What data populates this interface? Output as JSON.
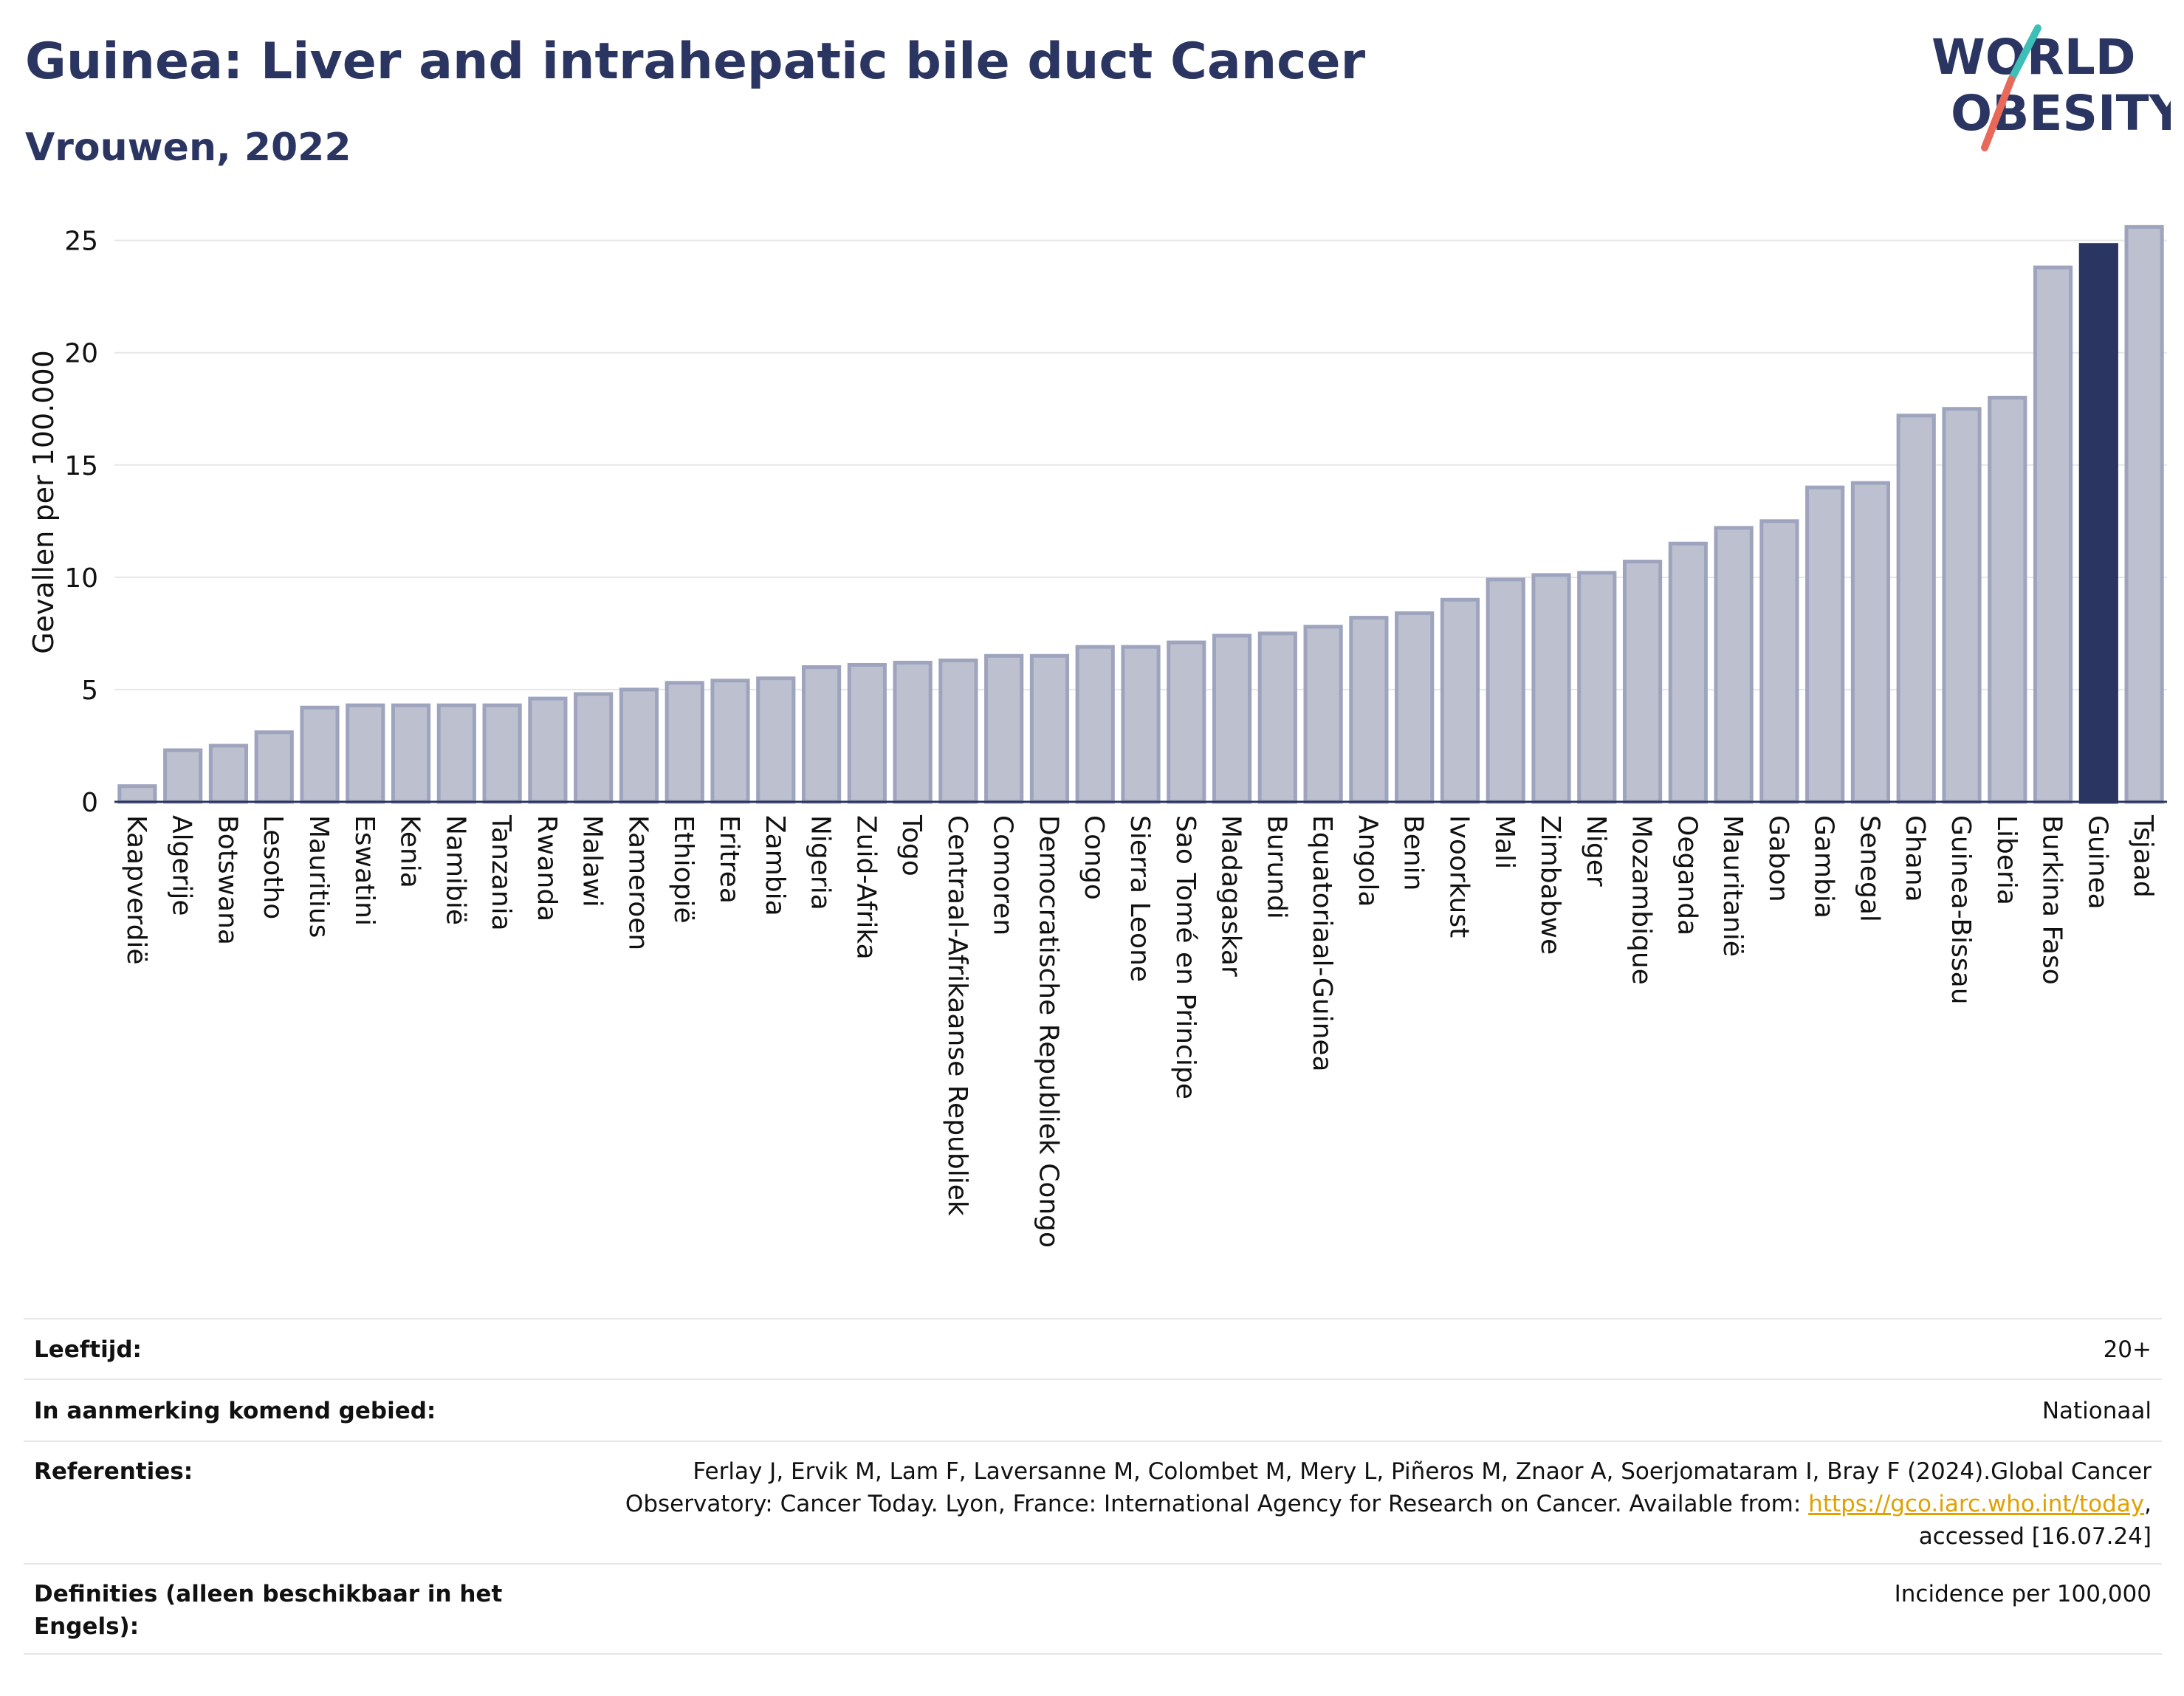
{
  "title": "Guinea: Liver and intrahepatic bile duct Cancer",
  "subtitle": "Vrouwen, 2022",
  "logo": {
    "line1": "WORLD",
    "line2": "OBESITY",
    "accent_teal": "#3dbfb8",
    "accent_red": "#e8695a",
    "text_color": "#2b3561"
  },
  "colors": {
    "highlight": "#2b3561",
    "bar_fill": "#bcc0cf",
    "bar_stroke": "#9ea4bd",
    "grid": "#e6e6e6",
    "link": "#e0a100"
  },
  "chart_data": {
    "type": "bar",
    "title": "Guinea: Liver and intrahepatic bile duct Cancer",
    "subtitle": "Vrouwen, 2022",
    "xlabel": "",
    "ylabel": "Gevallen per 100.000",
    "ylim": [
      0,
      26.5
    ],
    "yticks": [
      0,
      5,
      10,
      15,
      20,
      25
    ],
    "grid": true,
    "highlight": "Guinea",
    "categories": [
      "Kaapverdië",
      "Algerije",
      "Botswana",
      "Lesotho",
      "Mauritius",
      "Eswatini",
      "Kenia",
      "Namibië",
      "Tanzania",
      "Rwanda",
      "Malawi",
      "Kameroen",
      "Ethiopië",
      "Eritrea",
      "Zambia",
      "Nigeria",
      "Zuid-Afrika",
      "Togo",
      "Centraal-Afrikaanse Republiek",
      "Comoren",
      "Democratische Republiek Congo",
      "Congo",
      "Sierra Leone",
      "Sao Tomé en Principe",
      "Madagaskar",
      "Burundi",
      "Equatoriaal-Guinea",
      "Angola",
      "Benin",
      "Ivoorkust",
      "Mali",
      "Zimbabwe",
      "Niger",
      "Mozambique",
      "Oeganda",
      "Mauritanië",
      "Gabon",
      "Gambia",
      "Senegal",
      "Ghana",
      "Guinea-Bissau",
      "Liberia",
      "Burkina Faso",
      "Guinea",
      "Tsjaad"
    ],
    "values": [
      0.7,
      2.3,
      2.5,
      3.1,
      4.2,
      4.3,
      4.3,
      4.3,
      4.3,
      4.6,
      4.8,
      5.0,
      5.3,
      5.4,
      5.5,
      6.0,
      6.1,
      6.2,
      6.3,
      6.5,
      6.5,
      6.9,
      6.9,
      7.1,
      7.4,
      7.5,
      7.8,
      8.2,
      8.4,
      9.0,
      9.9,
      10.1,
      10.2,
      10.7,
      11.5,
      12.2,
      12.5,
      14.0,
      14.2,
      17.2,
      17.5,
      18.0,
      23.8,
      24.8,
      25.6
    ]
  },
  "meta": [
    {
      "label": "Leeftijd:",
      "value": "20+"
    },
    {
      "label": "In aanmerking komend gebied:",
      "value": "Nationaal"
    },
    {
      "label": "Referenties:",
      "value_line1": "Ferlay J, Ervik M, Lam F, Laversanne M, Colombet M, Mery L, Piñeros M, Znaor A, Soerjomataram I, Bray F (2024).Global Cancer",
      "value_line2_pre": "Observatory: Cancer Today. Lyon, France: International Agency for Research on Cancer. Available from: ",
      "value_link": "https://gco.iarc.who.int/today",
      "value_line2_post": ",",
      "value_line3": "accessed [16.07.24]"
    },
    {
      "label": "Definities (alleen beschikbaar in het Engels):",
      "value": "Incidence per 100,000"
    }
  ]
}
